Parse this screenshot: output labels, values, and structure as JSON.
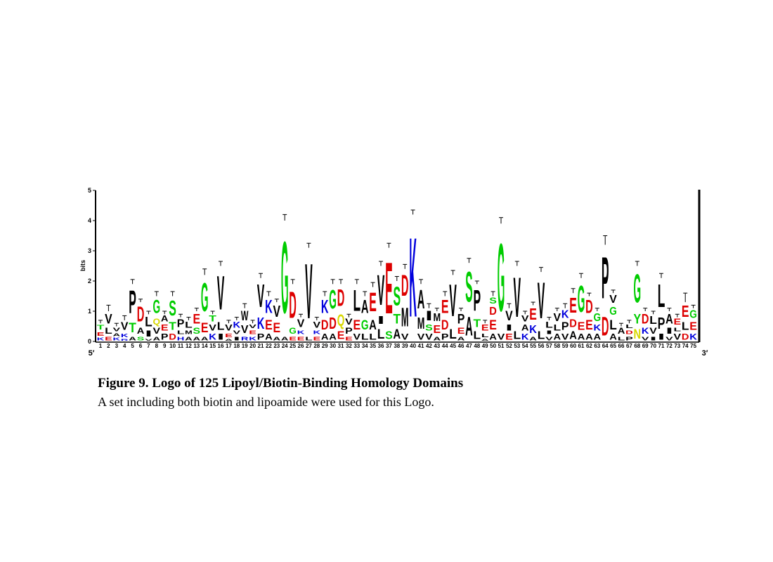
{
  "chart_data": {
    "type": "logo",
    "ylabel": "bits",
    "ylim": [
      0,
      5
    ],
    "yticks": [
      0,
      1,
      2,
      3,
      4,
      5
    ],
    "left_end": "5′",
    "right_end": "3′",
    "caption_title": "Figure 9. Logo of 125 Lipoyl/Biotin-Binding Homology Domains",
    "caption_text": "A set including both biotin and lipoamide were used for this Logo.",
    "colors": {
      "G": "#00cc00",
      "S": "#00cc00",
      "T": "#00cc00",
      "Y": "#00cc00",
      "C": "#00cc00",
      "N": "#d8d800",
      "Q": "#d8d800",
      "K": "#0000dd",
      "R": "#0000dd",
      "H": "#0000dd",
      "D": "#dd0000",
      "E": "#dd0000",
      "A": "#000000",
      "V": "#000000",
      "L": "#000000",
      "I": "#000000",
      "P": "#000000",
      "F": "#000000",
      "M": "#000000",
      "W": "#000000"
    },
    "positions": [
      1,
      2,
      3,
      4,
      5,
      6,
      7,
      8,
      9,
      10,
      11,
      12,
      13,
      14,
      15,
      16,
      17,
      18,
      19,
      20,
      21,
      22,
      23,
      24,
      25,
      26,
      27,
      28,
      29,
      30,
      31,
      32,
      33,
      34,
      35,
      36,
      37,
      38,
      39,
      40,
      41,
      42,
      43,
      44,
      45,
      46,
      47,
      48,
      49,
      50,
      51,
      52,
      53,
      54,
      55,
      56,
      57,
      58,
      59,
      60,
      61,
      62,
      63,
      64,
      65,
      66,
      67,
      68,
      69,
      70,
      71,
      72,
      73,
      74,
      75
    ],
    "stacks": [
      [
        [
          "K",
          0.15
        ],
        [
          "E",
          0.2
        ],
        [
          "T",
          0.25
        ]
      ],
      [
        [
          "E",
          0.2
        ],
        [
          "L",
          0.3
        ],
        [
          "V",
          0.5
        ]
      ],
      [
        [
          "K",
          0.15
        ],
        [
          "A",
          0.15
        ],
        [
          "V",
          0.2
        ]
      ],
      [
        [
          "R",
          0.1
        ],
        [
          "K",
          0.2
        ],
        [
          "V",
          0.4
        ]
      ],
      [
        [
          "A",
          0.2
        ],
        [
          "T",
          0.5
        ],
        [
          "P",
          1.2
        ]
      ],
      [
        [
          "S",
          0.2
        ],
        [
          "A",
          0.3
        ],
        [
          "D",
          0.8
        ]
      ],
      [
        [
          "V",
          0.1
        ],
        [
          "I",
          0.3
        ],
        [
          "L",
          0.5
        ]
      ],
      [
        [
          "A",
          0.2
        ],
        [
          "V",
          0.3
        ],
        [
          "Q",
          0.3
        ],
        [
          "G",
          0.7
        ]
      ],
      [
        [
          "P",
          0.3
        ],
        [
          "E",
          0.3
        ],
        [
          "A",
          0.3
        ]
      ],
      [
        [
          "D",
          0.3
        ],
        [
          "T",
          0.4
        ],
        [
          "S",
          0.8
        ]
      ],
      [
        [
          "H",
          0.2
        ],
        [
          "L",
          0.2
        ],
        [
          "P",
          0.4
        ]
      ],
      [
        [
          "A",
          0.2
        ],
        [
          "M",
          0.2
        ],
        [
          "L",
          0.3
        ]
      ],
      [
        [
          "A",
          0.2
        ],
        [
          "S",
          0.3
        ],
        [
          "E",
          0.5
        ]
      ],
      [
        [
          "A",
          0.2
        ],
        [
          "E",
          0.5
        ],
        [
          "G",
          1.5
        ]
      ],
      [
        [
          "K",
          0.3
        ],
        [
          "V",
          0.3
        ],
        [
          "T",
          0.3
        ]
      ],
      [
        [
          "I",
          0.3
        ],
        [
          "L",
          0.4
        ],
        [
          "V",
          1.8
        ]
      ],
      [
        [
          "A",
          0.1
        ],
        [
          "E",
          0.2
        ],
        [
          "V",
          0.3
        ]
      ],
      [
        [
          "I",
          0.2
        ],
        [
          "V",
          0.2
        ],
        [
          "K",
          0.3
        ]
      ],
      [
        [
          "R",
          0.2
        ],
        [
          "V",
          0.4
        ],
        [
          "W",
          0.5
        ]
      ],
      [
        [
          "K",
          0.2
        ],
        [
          "E",
          0.2
        ],
        [
          "V",
          0.2
        ]
      ],
      [
        [
          "P",
          0.3
        ],
        [
          "K",
          0.6
        ],
        [
          "V",
          1.2
        ]
      ],
      [
        [
          "A",
          0.3
        ],
        [
          "E",
          0.5
        ],
        [
          "K",
          0.7
        ]
      ],
      [
        [
          "A",
          0.2
        ],
        [
          "E",
          0.5
        ],
        [
          "V",
          0.6
        ]
      ],
      [
        [
          "A",
          0.2
        ],
        [
          "G",
          3.8
        ]
      ],
      [
        [
          "E",
          0.2
        ],
        [
          "G",
          0.3
        ],
        [
          "D",
          1.4
        ]
      ],
      [
        [
          "E",
          0.2
        ],
        [
          "K",
          0.2
        ],
        [
          "V",
          0.4
        ]
      ],
      [
        [
          "L",
          0.2
        ],
        [
          "V",
          2.9
        ]
      ],
      [
        [
          "E",
          0.2
        ],
        [
          "K",
          0.2
        ],
        [
          "V",
          0.3
        ]
      ],
      [
        [
          "A",
          0.3
        ],
        [
          "D",
          0.5
        ],
        [
          "K",
          0.7
        ]
      ],
      [
        [
          "A",
          0.3
        ],
        [
          "D",
          0.6
        ],
        [
          "G",
          1.0
        ]
      ],
      [
        [
          "E",
          0.4
        ],
        [
          "Q",
          0.6
        ],
        [
          "D",
          0.9
        ]
      ],
      [
        [
          "E",
          0.2
        ],
        [
          "P",
          0.3
        ],
        [
          "V",
          0.3
        ]
      ],
      [
        [
          "V",
          0.3
        ],
        [
          "E",
          0.5
        ],
        [
          "L",
          1.1
        ]
      ],
      [
        [
          "L",
          0.3
        ],
        [
          "G",
          0.5
        ],
        [
          "A",
          0.7
        ]
      ],
      [
        [
          "L",
          0.3
        ],
        [
          "A",
          0.5
        ],
        [
          "E",
          1.0
        ]
      ],
      [
        [
          "L",
          0.5
        ],
        [
          "I",
          0.4
        ],
        [
          "V",
          1.6
        ]
      ],
      [
        [
          "S",
          0.4
        ],
        [
          "E",
          2.7
        ]
      ],
      [
        [
          "A",
          0.5
        ],
        [
          "T",
          0.5
        ],
        [
          "S",
          1.0
        ]
      ],
      [
        [
          "V",
          0.3
        ],
        [
          "M",
          1.0
        ],
        [
          "D",
          1.1
        ]
      ],
      [
        [
          "K",
          4.2
        ]
      ],
      [
        [
          "V",
          0.3
        ],
        [
          "M",
          0.6
        ],
        [
          "A",
          1.0
        ]
      ],
      [
        [
          "V",
          0.3
        ],
        [
          "S",
          0.3
        ],
        [
          "I",
          0.5
        ]
      ],
      [
        [
          "A",
          0.2
        ],
        [
          "E",
          0.4
        ],
        [
          "M",
          0.4
        ]
      ],
      [
        [
          "P",
          0.3
        ],
        [
          "D",
          0.5
        ],
        [
          "E",
          0.7
        ]
      ],
      [
        [
          "L",
          0.5
        ],
        [
          "V",
          1.7
        ]
      ],
      [
        [
          "A",
          0.2
        ],
        [
          "E",
          0.3
        ],
        [
          "P",
          0.5
        ]
      ],
      [
        [
          "A",
          1.0
        ],
        [
          "S",
          1.6
        ]
      ],
      [
        [
          "L",
          0.4
        ],
        [
          "T",
          0.4
        ],
        [
          "P",
          1.1
        ]
      ],
      [
        [
          "A",
          0.1
        ],
        [
          "L",
          0.2
        ],
        [
          "E",
          0.3
        ]
      ],
      [
        [
          "A",
          0.3
        ],
        [
          "E",
          0.5
        ],
        [
          "D",
          0.4
        ],
        [
          "S",
          0.3
        ]
      ],
      [
        [
          "V",
          0.3
        ],
        [
          "G",
          3.6
        ]
      ],
      [
        [
          "E",
          0.3
        ],
        [
          "I",
          0.3
        ],
        [
          "V",
          0.5
        ]
      ],
      [
        [
          "L",
          0.4
        ],
        [
          "V",
          2.1
        ]
      ],
      [
        [
          "K",
          0.3
        ],
        [
          "A",
          0.3
        ],
        [
          "V",
          0.3
        ]
      ],
      [
        [
          "A",
          0.2
        ],
        [
          "K",
          0.4
        ],
        [
          "E",
          0.6
        ]
      ],
      [
        [
          "L",
          0.4
        ],
        [
          "V",
          1.9
        ]
      ],
      [
        [
          "V",
          0.2
        ],
        [
          "I",
          0.2
        ],
        [
          "L",
          0.3
        ]
      ],
      [
        [
          "A",
          0.3
        ],
        [
          "L",
          0.3
        ],
        [
          "V",
          0.4
        ]
      ],
      [
        [
          "V",
          0.3
        ],
        [
          "P",
          0.4
        ],
        [
          "K",
          0.4
        ]
      ],
      [
        [
          "A",
          0.4
        ],
        [
          "D",
          0.4
        ],
        [
          "E",
          0.8
        ]
      ],
      [
        [
          "A",
          0.3
        ],
        [
          "E",
          0.4
        ],
        [
          "G",
          1.4
        ]
      ],
      [
        [
          "A",
          0.3
        ],
        [
          "E",
          0.5
        ],
        [
          "D",
          0.7
        ]
      ],
      [
        [
          "A",
          0.3
        ],
        [
          "K",
          0.3
        ],
        [
          "G",
          0.4
        ]
      ],
      [
        [
          "D",
          1.0
        ],
        [
          "P",
          2.2
        ]
      ],
      [
        [
          "A",
          0.3
        ],
        [
          "L",
          0.5
        ],
        [
          "G",
          0.4
        ],
        [
          "V",
          0.4
        ]
      ],
      [
        [
          "L",
          0.2
        ],
        [
          "A",
          0.3
        ]
      ],
      [
        [
          "P",
          0.2
        ],
        [
          "D",
          0.2
        ],
        [
          "L",
          0.2
        ]
      ],
      [
        [
          "N",
          0.5
        ],
        [
          "Y",
          0.5
        ],
        [
          "G",
          1.5
        ]
      ],
      [
        [
          "V",
          0.2
        ],
        [
          "K",
          0.3
        ],
        [
          "D",
          0.5
        ]
      ],
      [
        [
          "I",
          0.2
        ],
        [
          "V",
          0.3
        ],
        [
          "L",
          0.4
        ]
      ],
      [
        [
          "I",
          0.3
        ],
        [
          "P",
          0.6
        ],
        [
          "L",
          1.2
        ]
      ],
      [
        [
          "V",
          0.2
        ],
        [
          "I",
          0.3
        ],
        [
          "A",
          0.5
        ]
      ],
      [
        [
          "V",
          0.3
        ],
        [
          "L",
          0.2
        ],
        [
          "E",
          0.3
        ]
      ],
      [
        [
          "D",
          0.3
        ],
        [
          "L",
          0.4
        ],
        [
          "E",
          0.6
        ]
      ],
      [
        [
          "K",
          0.3
        ],
        [
          "E",
          0.4
        ],
        [
          "G",
          0.4
        ]
      ]
    ],
    "errors": [
      0.1,
      0.2,
      0.1,
      0.15,
      0.15,
      0.1,
      0.1,
      0.15,
      0.1,
      0.15,
      0.1,
      0.1,
      0.1,
      0.2,
      0.1,
      0.15,
      0.1,
      0.1,
      0.15,
      0.1,
      0.15,
      0.15,
      0.1,
      0.2,
      0.15,
      0.1,
      0.15,
      0.1,
      0.15,
      0.15,
      0.15,
      0.1,
      0.15,
      0.15,
      0.15,
      0.15,
      0.15,
      0.15,
      0.15,
      0.15,
      0.15,
      0.15,
      0.1,
      0.15,
      0.15,
      0.1,
      0.15,
      0.1,
      0.1,
      0.15,
      0.2,
      0.15,
      0.15,
      0.1,
      0.1,
      0.15,
      0.1,
      0.1,
      0.15,
      0.15,
      0.15,
      0.1,
      0.1,
      0.3,
      0.1,
      0.1,
      0.1,
      0.15,
      0.1,
      0.1,
      0.15,
      0.1,
      0.1,
      0.3,
      0.1
    ]
  }
}
